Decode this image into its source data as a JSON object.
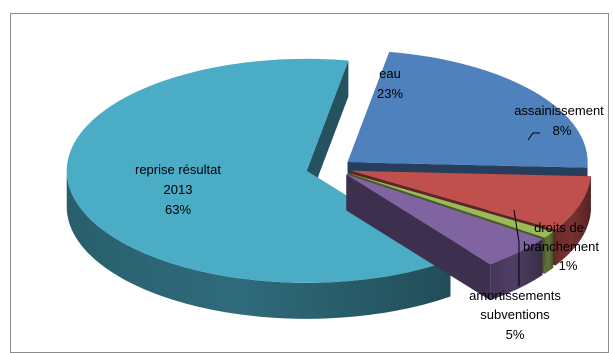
{
  "chart_data": {
    "type": "pie",
    "three_d": true,
    "exploded": true,
    "title": "",
    "legend": "none",
    "slices": [
      {
        "id": "eau",
        "label_lines": [
          "eau",
          "23%"
        ],
        "value": 23,
        "color": "#4f81bd"
      },
      {
        "id": "assainissement",
        "label_lines": [
          "assainissement",
          "8%"
        ],
        "value": 8,
        "color": "#c0504d"
      },
      {
        "id": "droits-de-branchement",
        "label_lines": [
          "droits de",
          "branchement",
          "1%"
        ],
        "value": 1,
        "color": "#9bbb59"
      },
      {
        "id": "amortissements-subventions",
        "label_lines": [
          "amortissements",
          "subventions",
          "5%"
        ],
        "value": 5,
        "color": "#8064a2"
      },
      {
        "id": "reprise-resultat-2013",
        "label_lines": [
          "reprise résultat",
          "2013",
          "63%"
        ],
        "value": 63,
        "color": "#4bacc6"
      }
    ]
  }
}
